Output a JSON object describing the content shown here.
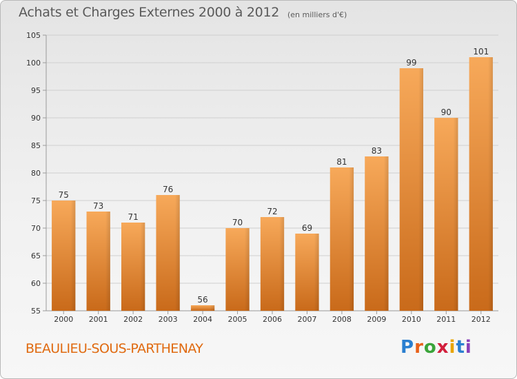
{
  "header": {
    "title": "Achats et Charges Externes 2000 à 2012",
    "subtitle": "(en milliers d'€)"
  },
  "footer": {
    "commune": "BEAULIEU-SOUS-PARTHENAY",
    "logo_letters": [
      {
        "ch": "P",
        "color": "#2a7fd0"
      },
      {
        "ch": "r",
        "color": "#e8611a"
      },
      {
        "ch": "o",
        "color": "#3aa43a"
      },
      {
        "ch": "x",
        "color": "#d21f3c"
      },
      {
        "ch": "i",
        "color": "#e8a400"
      },
      {
        "ch": "t",
        "color": "#2a7fd0"
      },
      {
        "ch": "i",
        "color": "#8a3fb8"
      }
    ]
  },
  "colors": {
    "bar_top": "#f7a95a",
    "bar_bottom": "#c96a1a",
    "grid": "#cfcfcf",
    "axis": "#9a9a9a"
  },
  "chart_data": {
    "type": "bar",
    "categories": [
      "2000",
      "2001",
      "2002",
      "2003",
      "2004",
      "2005",
      "2006",
      "2007",
      "2008",
      "2009",
      "2010",
      "2011",
      "2012"
    ],
    "values": [
      75,
      73,
      71,
      76,
      56,
      70,
      72,
      69,
      81,
      83,
      99,
      90,
      101
    ],
    "title": "Achats et Charges Externes 2000 à 2012",
    "ylim": [
      55,
      105
    ],
    "yticks": [
      55,
      60,
      65,
      70,
      75,
      80,
      85,
      90,
      95,
      100,
      105
    ],
    "grid": true,
    "legend": "none"
  }
}
